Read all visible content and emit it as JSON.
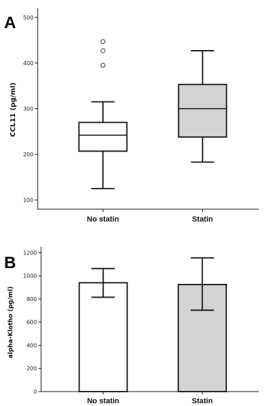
{
  "chart_data": [
    {
      "panel": "A",
      "type": "box",
      "ylabel": "CCL11 (pg/ml)",
      "ylim": [
        80,
        520
      ],
      "yticks": [
        100,
        200,
        300,
        400,
        500
      ],
      "categories": [
        "No statin",
        "Statin"
      ],
      "boxes": [
        {
          "category": "No statin",
          "whisker_low": 125,
          "q1": 207,
          "median": 242,
          "q3": 270,
          "whisker_high": 315,
          "outliers": [
            395,
            427,
            447
          ],
          "fill": "#ffffff"
        },
        {
          "category": "Statin",
          "whisker_low": 183,
          "q1": 238,
          "median": 300,
          "q3": 353,
          "whisker_high": 427,
          "outliers": [],
          "fill": "#d3d3d3"
        }
      ],
      "grid": false
    },
    {
      "panel": "B",
      "type": "bar",
      "ylabel": "alpha-Klotho (pg/ml)",
      "ylim": [
        0,
        1250
      ],
      "yticks": [
        0,
        200,
        400,
        600,
        800,
        1000,
        1200
      ],
      "categories": [
        "No statin",
        "Statin"
      ],
      "values": [
        940,
        925
      ],
      "error_low": [
        815,
        703
      ],
      "error_high": [
        1063,
        1155
      ],
      "fills": [
        "#ffffff",
        "#d3d3d3"
      ],
      "grid": false
    }
  ]
}
